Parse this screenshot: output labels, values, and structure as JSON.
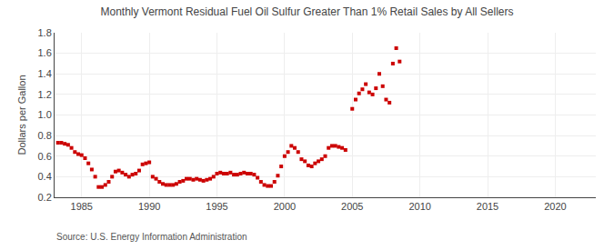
{
  "chart_data": {
    "type": "scatter",
    "title": "Monthly Vermont Residual Fuel Oil Sulfur Greater Than 1% Retail Sales by All Sellers",
    "ylabel": "Dollars per Gallon",
    "annotations": [
      "Source: U.S. Energy Information Administration"
    ],
    "color": "#cc0000",
    "marker": "square",
    "grid": true,
    "xlim": [
      1983,
      2023
    ],
    "ylim": [
      0.2,
      1.8
    ],
    "xticks": [
      1985,
      1990,
      1995,
      2000,
      2005,
      2010,
      2015,
      2020
    ],
    "yticks": [
      0.2,
      0.4,
      0.6,
      0.8,
      {
        "value": 1.0,
        "label": "1.0"
      },
      1.2,
      1.4,
      1.6,
      1.8
    ],
    "x": [
      1983.25,
      1983.5,
      1983.75,
      1984.0,
      1984.25,
      1984.5,
      1984.75,
      1985.0,
      1985.25,
      1985.5,
      1985.75,
      1986.0,
      1986.25,
      1986.5,
      1986.75,
      1987.0,
      1987.25,
      1987.5,
      1987.75,
      1988.0,
      1988.25,
      1988.5,
      1988.75,
      1989.0,
      1989.25,
      1989.5,
      1989.75,
      1990.0,
      1990.25,
      1990.5,
      1990.75,
      1991.0,
      1991.25,
      1991.5,
      1991.75,
      1992.0,
      1992.25,
      1992.5,
      1992.75,
      1993.0,
      1993.25,
      1993.5,
      1993.75,
      1994.0,
      1994.25,
      1994.5,
      1994.75,
      1995.0,
      1995.25,
      1995.5,
      1995.75,
      1996.0,
      1996.25,
      1996.5,
      1996.75,
      1997.0,
      1997.25,
      1997.5,
      1997.75,
      1998.0,
      1998.25,
      1998.5,
      1998.75,
      1999.0,
      1999.25,
      1999.5,
      1999.75,
      2000.0,
      2000.25,
      2000.5,
      2000.75,
      2001.0,
      2001.25,
      2001.5,
      2001.75,
      2002.0,
      2002.25,
      2002.5,
      2002.75,
      2003.0,
      2003.25,
      2003.5,
      2003.75,
      2004.0,
      2004.25,
      2004.5,
      2005.0,
      2005.25,
      2005.5,
      2005.75,
      2006.0,
      2006.25,
      2006.5,
      2006.75,
      2007.0,
      2007.25,
      2007.5,
      2007.75,
      2008.0,
      2008.25,
      2008.5
    ],
    "values": [
      0.73,
      0.73,
      0.72,
      0.71,
      0.68,
      0.64,
      0.62,
      0.61,
      0.58,
      0.53,
      0.47,
      0.4,
      0.3,
      0.3,
      0.32,
      0.35,
      0.4,
      0.45,
      0.46,
      0.44,
      0.42,
      0.4,
      0.42,
      0.43,
      0.46,
      0.52,
      0.53,
      0.54,
      0.4,
      0.38,
      0.35,
      0.33,
      0.32,
      0.32,
      0.32,
      0.33,
      0.35,
      0.36,
      0.38,
      0.38,
      0.37,
      0.38,
      0.37,
      0.36,
      0.37,
      0.38,
      0.4,
      0.43,
      0.44,
      0.43,
      0.43,
      0.44,
      0.42,
      0.42,
      0.43,
      0.44,
      0.43,
      0.43,
      0.42,
      0.39,
      0.35,
      0.32,
      0.31,
      0.31,
      0.35,
      0.41,
      0.5,
      0.6,
      0.64,
      0.7,
      0.68,
      0.64,
      0.57,
      0.55,
      0.51,
      0.5,
      0.53,
      0.55,
      0.57,
      0.6,
      0.68,
      0.7,
      0.7,
      0.69,
      0.68,
      0.66,
      1.06,
      1.15,
      1.21,
      1.25,
      1.3,
      1.22,
      1.2,
      1.26,
      1.4,
      1.28,
      1.15,
      1.12,
      1.5,
      1.65,
      1.52
    ]
  }
}
